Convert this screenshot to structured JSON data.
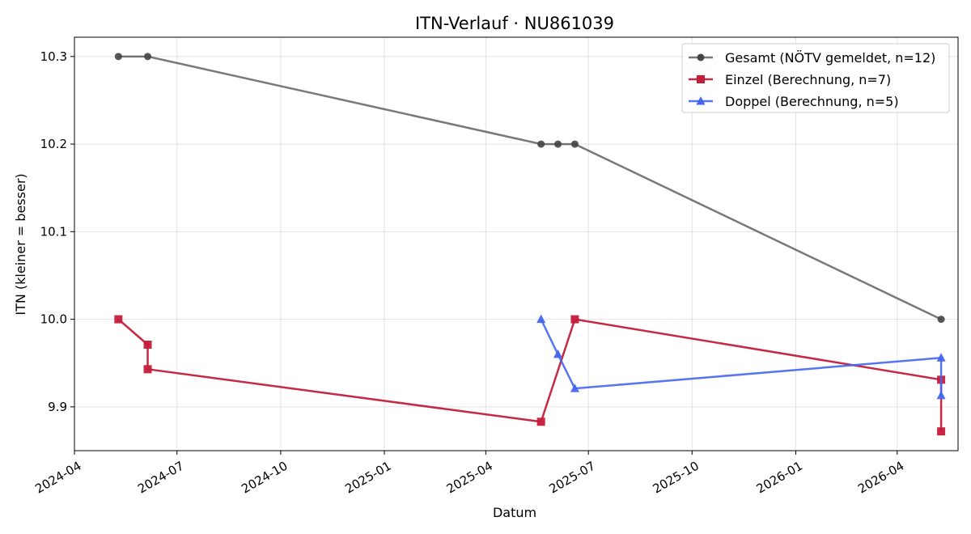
{
  "chart_data": {
    "type": "line",
    "title": "ITN-Verlauf · NU861039",
    "xlabel": "Datum",
    "ylabel": "ITN  (kleiner = besser)",
    "x_type": "date",
    "xlim": [
      "2024-04-01",
      "2026-05-25"
    ],
    "ylim": [
      9.85,
      10.322
    ],
    "x_ticks": [
      "2024-04",
      "2024-07",
      "2024-10",
      "2025-01",
      "2025-04",
      "2025-07",
      "2025-10",
      "2026-01",
      "2026-04"
    ],
    "y_ticks": [
      9.9,
      10.0,
      10.1,
      10.2,
      10.3
    ],
    "y_tick_labels": [
      "9.9",
      "10.0",
      "10.1",
      "10.2",
      "10.3"
    ],
    "grid": true,
    "legend_position": "top-right",
    "series": [
      {
        "name": "Gesamt (NÖTV gemeldet, n=12)",
        "color": "#444444",
        "marker": "circle",
        "points": [
          {
            "x": "2024-05-10",
            "y": 10.3
          },
          {
            "x": "2024-06-05",
            "y": 10.3
          },
          {
            "x": "2025-05-20",
            "y": 10.2
          },
          {
            "x": "2025-06-04",
            "y": 10.2
          },
          {
            "x": "2025-06-19",
            "y": 10.2
          },
          {
            "x": "2026-05-10",
            "y": 10.0
          }
        ]
      },
      {
        "name": "Einzel (Berechnung, n=7)",
        "color": "#c41e3a",
        "marker": "square",
        "points": [
          {
            "x": "2024-05-10",
            "y": 10.0
          },
          {
            "x": "2024-06-05",
            "y": 9.971
          },
          {
            "x": "2024-06-05",
            "y": 9.943
          },
          {
            "x": "2025-05-20",
            "y": 9.883
          },
          {
            "x": "2025-06-19",
            "y": 10.0
          },
          {
            "x": "2026-05-10",
            "y": 9.931
          },
          {
            "x": "2026-05-10",
            "y": 9.872
          }
        ]
      },
      {
        "name": "Doppel (Berechnung, n=5)",
        "color": "#4466ee",
        "marker": "triangle",
        "points": [
          {
            "x": "2025-05-20",
            "y": 10.0
          },
          {
            "x": "2025-06-04",
            "y": 9.96
          },
          {
            "x": "2025-06-19",
            "y": 9.921
          },
          {
            "x": "2026-05-10",
            "y": 9.956
          },
          {
            "x": "2026-05-10",
            "y": 9.913
          }
        ]
      }
    ]
  }
}
